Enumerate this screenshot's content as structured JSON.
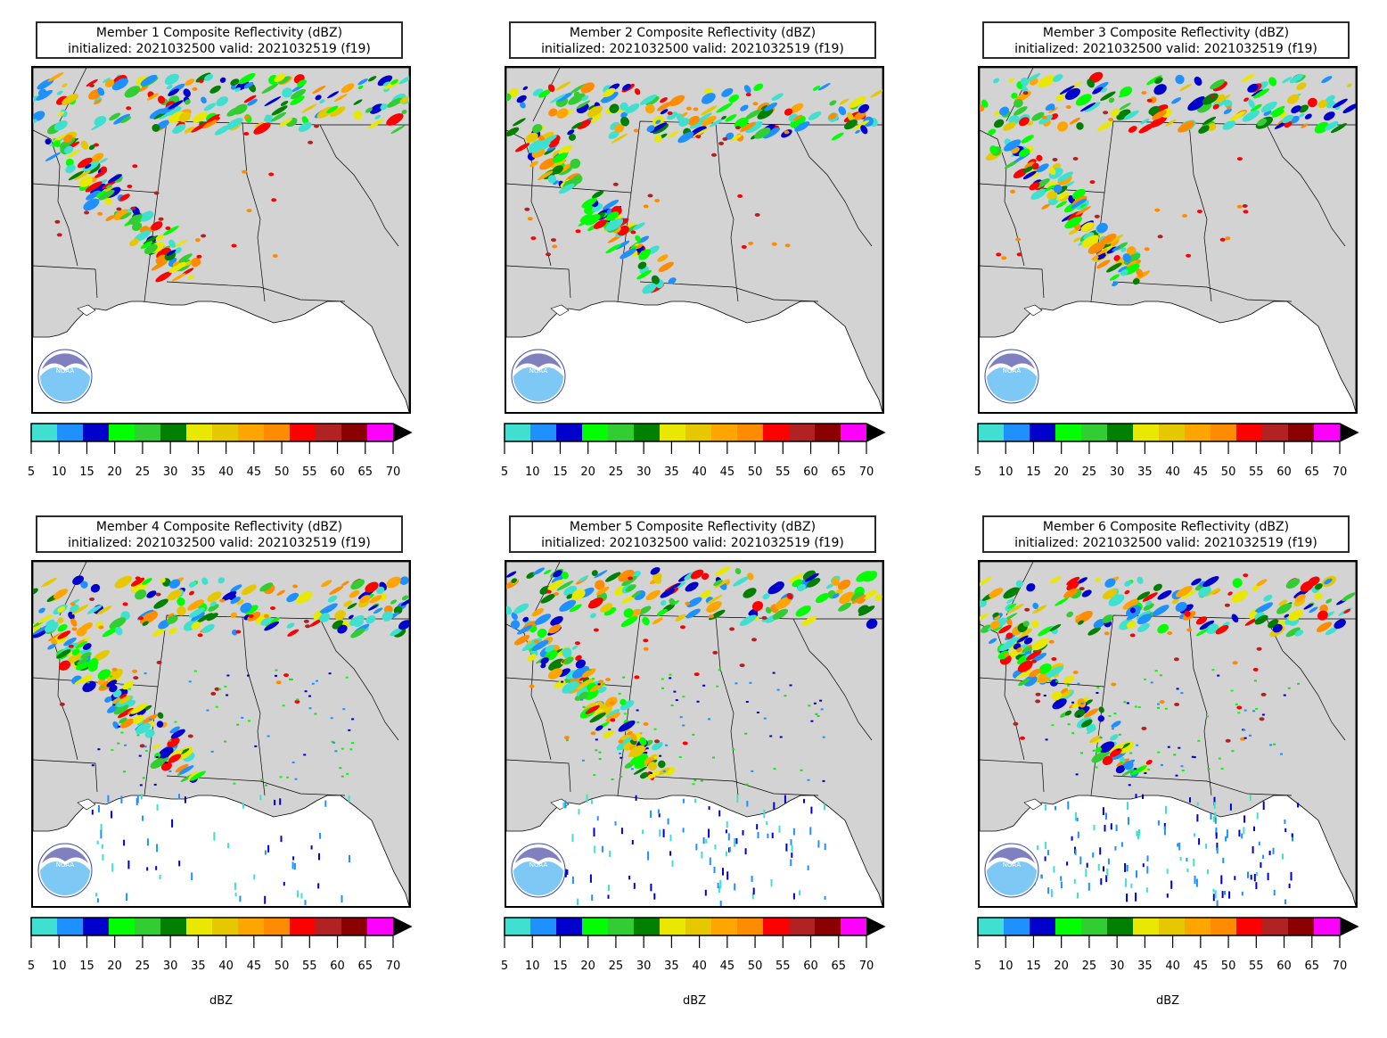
{
  "colorbar": {
    "colors": [
      "#40e0d0",
      "#1e90ff",
      "#0000cd",
      "#00ff00",
      "#32cd32",
      "#008000",
      "#e8e800",
      "#e6c800",
      "#ffa500",
      "#ff8c00",
      "#ff0000",
      "#b22222",
      "#8b0000",
      "#ff00ff"
    ],
    "ticks": [
      "5",
      "10",
      "15",
      "20",
      "25",
      "30",
      "35",
      "40",
      "45",
      "50",
      "55",
      "60",
      "65",
      "70"
    ],
    "extend": "max",
    "unit": "dBZ"
  },
  "panels": [
    {
      "title_line1": "Member 1 Composite Reflectivity (dBZ)",
      "title_line2": "initialized: 2021032500 valid: 2021032519 (f19)",
      "show_unit": false
    },
    {
      "title_line1": "Member 2 Composite Reflectivity (dBZ)",
      "title_line2": "initialized: 2021032500 valid: 2021032519 (f19)",
      "show_unit": false
    },
    {
      "title_line1": "Member 3 Composite Reflectivity (dBZ)",
      "title_line2": "initialized: 2021032500 valid: 2021032519 (f19)",
      "show_unit": false
    },
    {
      "title_line1": "Member 4 Composite Reflectivity (dBZ)",
      "title_line2": "initialized: 2021032500 valid: 2021032519 (f19)",
      "show_unit": true
    },
    {
      "title_line1": "Member 5 Composite Reflectivity (dBZ)",
      "title_line2": "initialized: 2021032500 valid: 2021032519 (f19)",
      "show_unit": true
    },
    {
      "title_line1": "Member 6 Composite Reflectivity (dBZ)",
      "title_line2": "initialized: 2021032500 valid: 2021032519 (f19)",
      "show_unit": true
    }
  ],
  "map": {
    "land_color": "#d3d3d3",
    "water_color": "#ffffff",
    "logo_icon": "noaa-logo-icon",
    "logo_text": "NOAA"
  }
}
